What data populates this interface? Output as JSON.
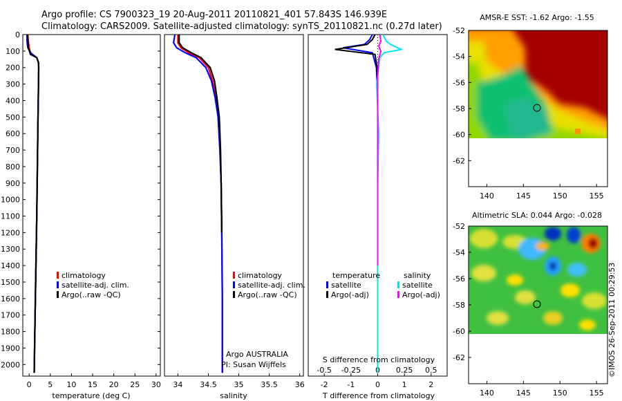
{
  "header": {
    "line1": "Argo profile: CS 7900323_19 20-Aug-2011 20110821_401 57.843S 146.939E",
    "line2": "Climatology: CARS2009. Satellite-adjusted climatology: synTS_20110821.nc (0.27d later)"
  },
  "side_stamp": "©IMOS 26-Sep-2011 00:29:53",
  "colors": {
    "climatology": "#ff0000",
    "satellite": "#0000ff",
    "argo": "#000000",
    "sal_satellite": "#00e5ee",
    "sal_argo": "#ff00ff"
  },
  "chart_data": [
    {
      "type": "line",
      "xlabel": "temperature (deg C)",
      "xticks": [
        0,
        5,
        10,
        15,
        20,
        25,
        30
      ],
      "xlim": [
        -1.5,
        31
      ],
      "ylim": [
        2070,
        0
      ],
      "yticks": [
        0,
        100,
        200,
        300,
        400,
        500,
        600,
        700,
        800,
        900,
        1000,
        1100,
        1200,
        1300,
        1400,
        1500,
        1600,
        1700,
        1800,
        1900,
        2000
      ],
      "legend": [
        "climatology",
        "satellite-adj. clim.",
        "Argo(..raw -QC)"
      ],
      "legend_position": "lower-center",
      "series": [
        {
          "name": "climatology",
          "x": [
            -0.3,
            -0.2,
            0.0,
            0.3,
            1.8,
            2.2,
            2.25,
            2.2,
            2.1,
            2.0,
            1.9,
            1.8,
            1.6,
            1.4,
            1.2
          ],
          "y": [
            0,
            40,
            80,
            110,
            140,
            170,
            200,
            300,
            500,
            700,
            900,
            1100,
            1400,
            1700,
            2050
          ]
        },
        {
          "name": "satellite-adj. clim.",
          "x": [
            -0.5,
            -0.5,
            -0.3,
            0.5,
            1.8,
            2.2,
            2.25,
            2.2,
            2.1,
            2.0,
            1.9,
            1.8,
            1.6,
            1.4,
            1.2
          ],
          "y": [
            0,
            40,
            80,
            115,
            140,
            170,
            200,
            300,
            500,
            700,
            900,
            1100,
            1400,
            1700,
            2050
          ]
        },
        {
          "name": "Argo(..raw -QC)",
          "x": [
            -0.4,
            -0.3,
            -0.2,
            0.3,
            1.8,
            2.2,
            2.25,
            2.2,
            2.1,
            2.0,
            1.9,
            1.8,
            1.6,
            1.4,
            1.2
          ],
          "y": [
            0,
            40,
            80,
            120,
            140,
            170,
            200,
            300,
            500,
            700,
            900,
            1100,
            1400,
            1700,
            2050
          ]
        }
      ]
    },
    {
      "type": "line",
      "xlabel": "salinity",
      "xticks": [
        34,
        34.5,
        35,
        35.5,
        36
      ],
      "xlim": [
        33.78,
        36.06
      ],
      "ylim": [
        2070,
        0
      ],
      "legend": [
        "climatology",
        "satellite-adj. clim.",
        "Argo(..raw -QC)"
      ],
      "annotations": [
        "Argo AUSTRALIA",
        "PI: Susan Wijffels"
      ],
      "series": [
        {
          "name": "climatology",
          "x": [
            34.0,
            34.0,
            34.05,
            34.18,
            34.35,
            34.5,
            34.57,
            34.62,
            34.66,
            34.69,
            34.71,
            34.72,
            34.73,
            34.73
          ],
          "y": [
            0,
            50,
            80,
            110,
            140,
            200,
            280,
            380,
            500,
            700,
            900,
            1200,
            1600,
            2050
          ]
        },
        {
          "name": "satellite-adj. clim.",
          "x": [
            33.95,
            33.93,
            33.98,
            34.12,
            34.3,
            34.46,
            34.55,
            34.61,
            34.66,
            34.69,
            34.71,
            34.72,
            34.73,
            34.73
          ],
          "y": [
            0,
            50,
            80,
            110,
            140,
            200,
            280,
            380,
            500,
            700,
            900,
            1200,
            1600,
            2050
          ]
        },
        {
          "name": "Argo(..raw -QC)",
          "x": [
            34.02,
            34.02,
            34.08,
            34.22,
            34.38,
            34.53,
            34.6,
            34.64,
            34.68,
            34.7,
            34.71,
            34.72
          ],
          "y": [
            0,
            50,
            80,
            110,
            140,
            200,
            280,
            380,
            500,
            700,
            900,
            1200
          ]
        }
      ]
    },
    {
      "type": "line",
      "xlabel": "T difference from climatology",
      "xlabel_top": "S difference from climatology",
      "xticks": [
        -2,
        -1,
        0,
        1,
        2
      ],
      "xticks_top": [
        -0.5,
        -0.25,
        0,
        0.25,
        0.5
      ],
      "xlim": [
        -2.6,
        2.6
      ],
      "ylim": [
        2070,
        0
      ],
      "legend_titles": [
        "temperature",
        "salinity"
      ],
      "legend_left": [
        "satellite",
        "Argo(-adj)"
      ],
      "legend_right": [
        "satellite",
        "Argo(-adj)"
      ],
      "series": [
        {
          "name": "T satellite",
          "x": [
            -0.2,
            -0.3,
            -0.5,
            -1.3,
            -0.2,
            -0.05,
            0.0,
            0.0,
            0.0,
            0.0
          ],
          "y": [
            0,
            30,
            60,
            80,
            110,
            200,
            400,
            800,
            1400,
            2050
          ]
        },
        {
          "name": "T Argo(-adj)",
          "x": [
            -0.1,
            -0.2,
            -0.4,
            -1.6,
            -0.1,
            -0.02,
            0.0,
            0.0,
            0.0
          ],
          "y": [
            0,
            30,
            60,
            90,
            120,
            200,
            400,
            800,
            1300
          ]
        },
        {
          "name": "S satellite",
          "x": [
            0.05,
            0.08,
            0.12,
            0.22,
            0.06,
            0.02,
            -0.01,
            0.01,
            0.0,
            0.0,
            0.0
          ],
          "y": [
            0,
            40,
            60,
            90,
            110,
            140,
            300,
            600,
            900,
            1400,
            2050
          ]
        },
        {
          "name": "S Argo(-adj)",
          "x": [
            0.02,
            0.03,
            0.01,
            0.03,
            0.01,
            0.0,
            0.0,
            0.0,
            0.0
          ],
          "y": [
            0,
            40,
            70,
            100,
            150,
            250,
            400,
            800,
            1400
          ]
        }
      ]
    },
    {
      "type": "heatmap",
      "title": "AMSR-E SST: -1.62 Argo: -1.55",
      "xticks": [
        140,
        145,
        150,
        155
      ],
      "yticks": [
        -52,
        -54,
        -56,
        -58,
        -60,
        -62
      ],
      "xlim": [
        137.5,
        156.5
      ],
      "ylim": [
        -64,
        -52
      ]
    },
    {
      "type": "heatmap",
      "title": "Altimetric SLA: 0.044 Argo: -0.028",
      "xticks": [
        140,
        145,
        150,
        155
      ],
      "yticks": [
        -52,
        -54,
        -56,
        -58,
        -60,
        -62
      ],
      "xlim": [
        137.5,
        156.5
      ],
      "ylim": [
        -64,
        -52
      ]
    }
  ]
}
